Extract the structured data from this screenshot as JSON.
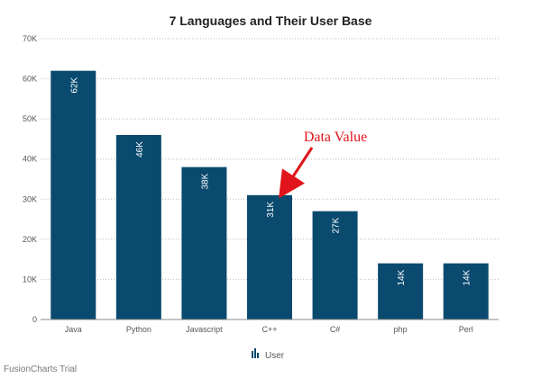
{
  "chart_data": {
    "type": "bar",
    "title": "7 Languages and Their User Base",
    "xlabel": "",
    "ylabel": "",
    "categories": [
      "Java",
      "Python",
      "Javascript",
      "C++",
      "C#",
      "php",
      "Perl"
    ],
    "series": [
      {
        "name": "User",
        "values": [
          62000,
          46000,
          38000,
          31000,
          27000,
          14000,
          14000
        ],
        "data_labels": [
          "62K",
          "46K",
          "38K",
          "31K",
          "27K",
          "14K",
          "14K"
        ]
      }
    ],
    "ylim": [
      0,
      70000
    ],
    "yticks": [
      0,
      10000,
      20000,
      30000,
      40000,
      50000,
      60000,
      70000
    ],
    "ytick_labels": [
      "0",
      "10K",
      "20K",
      "30K",
      "40K",
      "50K",
      "60K",
      "70K"
    ],
    "grid": true,
    "legend_position": "bottom-center",
    "colors": {
      "bar": "#0a4a6e",
      "annotation": "#e0141a",
      "title": "#222222",
      "axis_text": "#555555",
      "gridline": "#bbbbbb"
    },
    "annotation": {
      "text": "Data Value",
      "target_category": "C++"
    }
  },
  "footer": {
    "watermark": "FusionCharts Trial"
  },
  "legend": {
    "icon": "column-chart-icon"
  }
}
